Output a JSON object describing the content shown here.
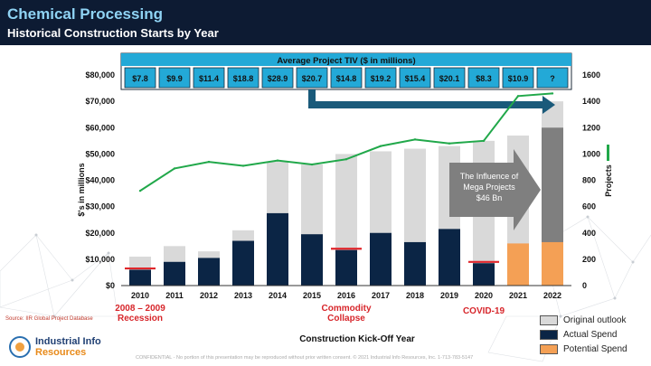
{
  "header": {
    "title": "Chemical Processing",
    "subtitle": "Historical Construction Starts by Year"
  },
  "tiv": {
    "title": "Average Project TIV ($ in millions)",
    "values": [
      "$7.8",
      "$9.9",
      "$11.4",
      "$18.8",
      "$28.9",
      "$20.7",
      "$14.8",
      "$19.2",
      "$15.4",
      "$20.1",
      "$8.3",
      "$10.9",
      "?"
    ]
  },
  "chart_data": {
    "type": "bar",
    "categories": [
      "2010",
      "2011",
      "2012",
      "2013",
      "2014",
      "2015",
      "2016",
      "2017",
      "2018",
      "2019",
      "2020",
      "2021",
      "2022"
    ],
    "series": [
      {
        "name": "Original outlook",
        "values": [
          11000,
          15000,
          13000,
          21000,
          47000,
          46000,
          50000,
          51000,
          52000,
          53000,
          55000,
          57000,
          70000
        ]
      },
      {
        "name": "Actual Spend",
        "values": [
          6000,
          9000,
          10500,
          17000,
          27500,
          19500,
          13500,
          20000,
          16500,
          21500,
          8500,
          null,
          null
        ]
      },
      {
        "name": "Potential Spend",
        "values": [
          null,
          null,
          null,
          null,
          null,
          null,
          null,
          null,
          null,
          null,
          null,
          16000,
          16500
        ]
      },
      {
        "name": "Projects",
        "axis": "right",
        "type": "line",
        "values": [
          720,
          890,
          940,
          910,
          950,
          920,
          960,
          1060,
          1110,
          1080,
          1100,
          1440,
          1460
        ]
      }
    ],
    "mega_projects": {
      "year": "2022",
      "value": 60000
    },
    "red_markers": [
      {
        "year": "2010",
        "value": 6500
      },
      {
        "year": "2016",
        "value": 14000
      },
      {
        "year": "2020",
        "value": 9000
      }
    ],
    "xlabel": "Construction Kick-Off Year",
    "ylabel": "$'s in millions",
    "y2label": "Projects",
    "ylim": [
      0,
      80000
    ],
    "y2lim": [
      0,
      1600
    ],
    "yticks": [
      "$0",
      "$10,000",
      "$20,000",
      "$30,000",
      "$40,000",
      "$50,000",
      "$60,000",
      "$70,000",
      "$80,000"
    ],
    "y2ticks": [
      "0",
      "200",
      "400",
      "600",
      "800",
      "1000",
      "1200",
      "1400",
      "1600"
    ],
    "annotations": [
      {
        "text_lines": [
          "2008 – 2009",
          "Recession"
        ],
        "year": "2010"
      },
      {
        "text_lines": [
          "Commodity",
          "Collapse"
        ],
        "year": "2016"
      },
      {
        "text_lines": [
          "COVID-19"
        ],
        "year": "2020"
      }
    ],
    "callout": {
      "lines": [
        "The Influence of",
        "Mega Projects",
        "$46 Bn"
      ]
    },
    "legend_position": "bottom-right",
    "grid": false
  },
  "colors": {
    "header_bg": "#0d1b33",
    "outlook": "#d9d9d9",
    "actual": "#0b2545",
    "potential": "#f4a055",
    "mega": "#7f7f7f",
    "line": "#21a84a",
    "marker": "#e0262b",
    "tiv_box": "#23a9d7"
  },
  "legend": {
    "items": [
      {
        "label": "Original outlook",
        "color": "#d9d9d9"
      },
      {
        "label": "Actual Spend",
        "color": "#0b2545"
      },
      {
        "label": "Potential Spend",
        "color": "#f4a055"
      }
    ]
  },
  "source": "Source: IIR Global Project Database",
  "logo": {
    "line1": "Industrial Info",
    "line2": "Resources"
  },
  "footer": "CONFIDENTIAL - No portion of this presentation may be reproduced without prior written consent. © 2021 Industrial Info Resources, Inc. 1-713-783-5147"
}
